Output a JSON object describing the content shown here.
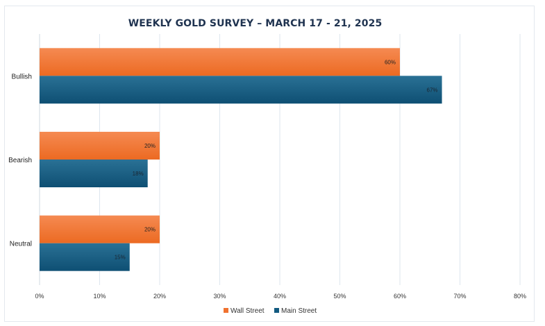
{
  "chart_data": {
    "type": "bar",
    "orientation": "horizontal",
    "title": "WEEKLY GOLD SURVEY – MARCH 17 - 21, 2025",
    "categories": [
      "Bullish",
      "Bearish",
      "Neutral"
    ],
    "series": [
      {
        "name": "Wall Street",
        "values": [
          60,
          20,
          20
        ],
        "labels": [
          "60%",
          "20%",
          "20%"
        ],
        "color": "#f0722f"
      },
      {
        "name": "Main Street",
        "values": [
          67,
          18,
          15
        ],
        "labels": [
          "67%",
          "18%",
          "15%"
        ],
        "color": "#125a80"
      }
    ],
    "xlim": [
      0,
      80
    ],
    "xticks": [
      0,
      10,
      20,
      30,
      40,
      50,
      60,
      70,
      80
    ],
    "xtick_labels": [
      "0%",
      "10%",
      "20%",
      "30%",
      "40%",
      "50%",
      "60%",
      "70%",
      "80%"
    ],
    "grid": true,
    "legend": "bottom"
  }
}
